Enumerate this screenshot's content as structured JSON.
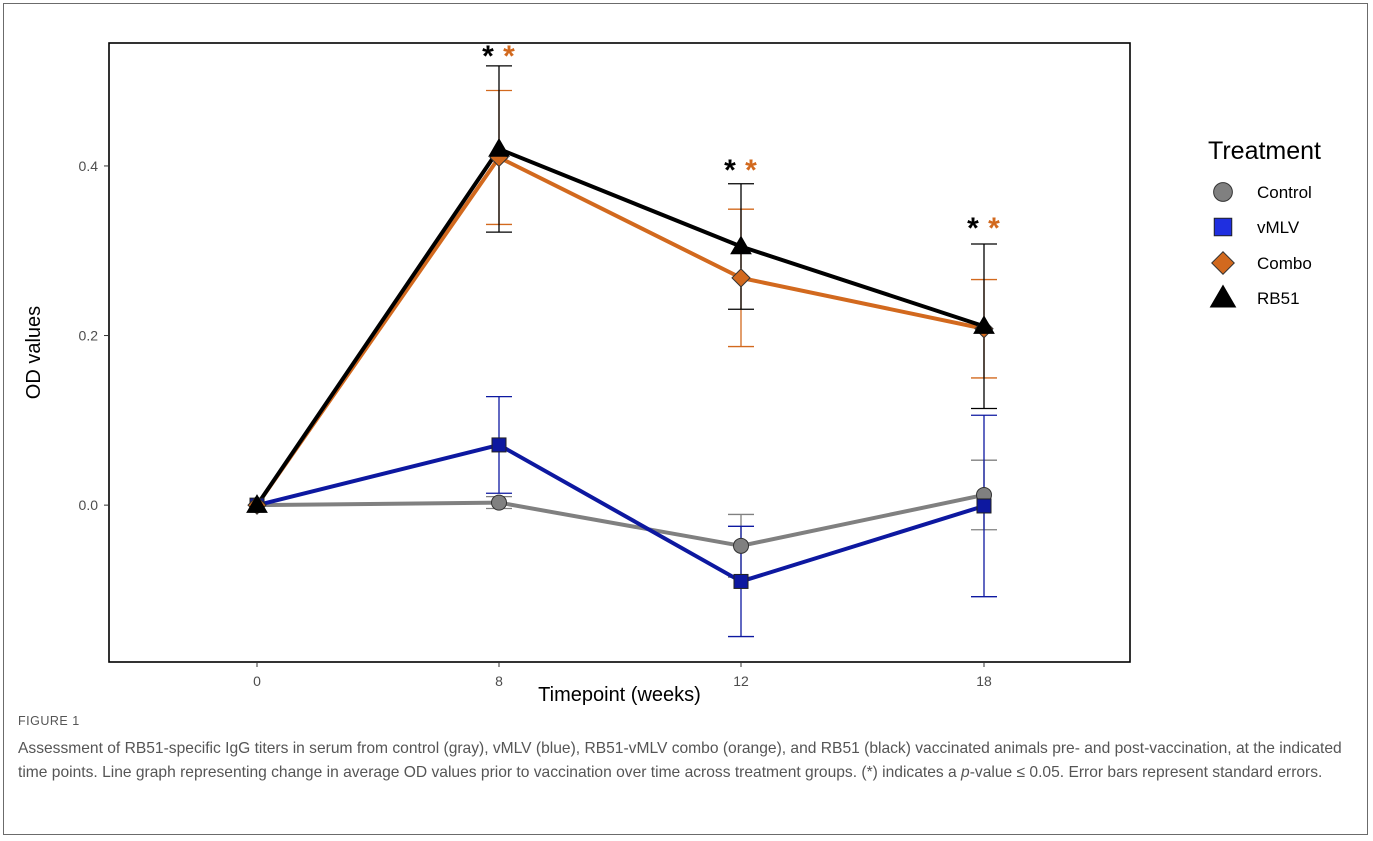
{
  "figure": {
    "label": "FIGURE 1",
    "caption_part1": "Assessment of RB51-specific IgG titers in serum from control (gray), vMLV (blue), RB51-vMLV combo (orange), and RB51 (black) vaccinated animals pre- and post-vaccination, at the indicated time points. Line graph representing change in average OD values prior to vaccination over time across treatment groups. (*) indicates a ",
    "caption_italic": "p",
    "caption_part2": "-value ≤ 0.05. Error bars represent standard errors."
  },
  "chart_data": {
    "type": "line",
    "title": "",
    "xlabel": "Timepoint (weeks)",
    "ylabel": "OD values",
    "x": [
      "0",
      "8",
      "12",
      "18"
    ],
    "yticks": [
      "0.0",
      "0.2",
      "0.4"
    ],
    "ylim": [
      -0.185,
      0.545
    ],
    "grid": false,
    "legend_title": "Treatment",
    "legend_position": "right",
    "series": [
      {
        "name": "Control",
        "color": "#808080",
        "marker": "circle",
        "values": [
          0.0,
          0.003,
          -0.048,
          0.012
        ],
        "error": [
          0.0,
          0.007,
          0.037,
          0.041
        ]
      },
      {
        "name": "vMLV",
        "color": "#0d18a0",
        "marker": "square",
        "values": [
          0.0,
          0.071,
          -0.09,
          -0.001
        ],
        "error": [
          0.0,
          0.057,
          0.065,
          0.107
        ]
      },
      {
        "name": "Combo",
        "color": "#d2691e",
        "marker": "diamond",
        "values": [
          0.0,
          0.41,
          0.268,
          0.208
        ],
        "error": [
          0.0,
          0.079,
          0.081,
          0.058
        ]
      },
      {
        "name": "RB51",
        "color": "#000000",
        "marker": "triangle",
        "values": [
          0.0,
          0.42,
          0.305,
          0.211
        ],
        "error": [
          0.0,
          0.098,
          0.074,
          0.097
        ]
      }
    ],
    "significance_marks": [
      {
        "x": "8",
        "symbols": [
          {
            "text": "*",
            "color": "#000000"
          },
          {
            "text": "*",
            "color": "#d2691e"
          }
        ]
      },
      {
        "x": "12",
        "symbols": [
          {
            "text": "*",
            "color": "#000000"
          },
          {
            "text": "*",
            "color": "#d2691e"
          }
        ]
      },
      {
        "x": "18",
        "symbols": [
          {
            "text": "*",
            "color": "#000000"
          },
          {
            "text": "*",
            "color": "#d2691e"
          }
        ]
      }
    ]
  }
}
